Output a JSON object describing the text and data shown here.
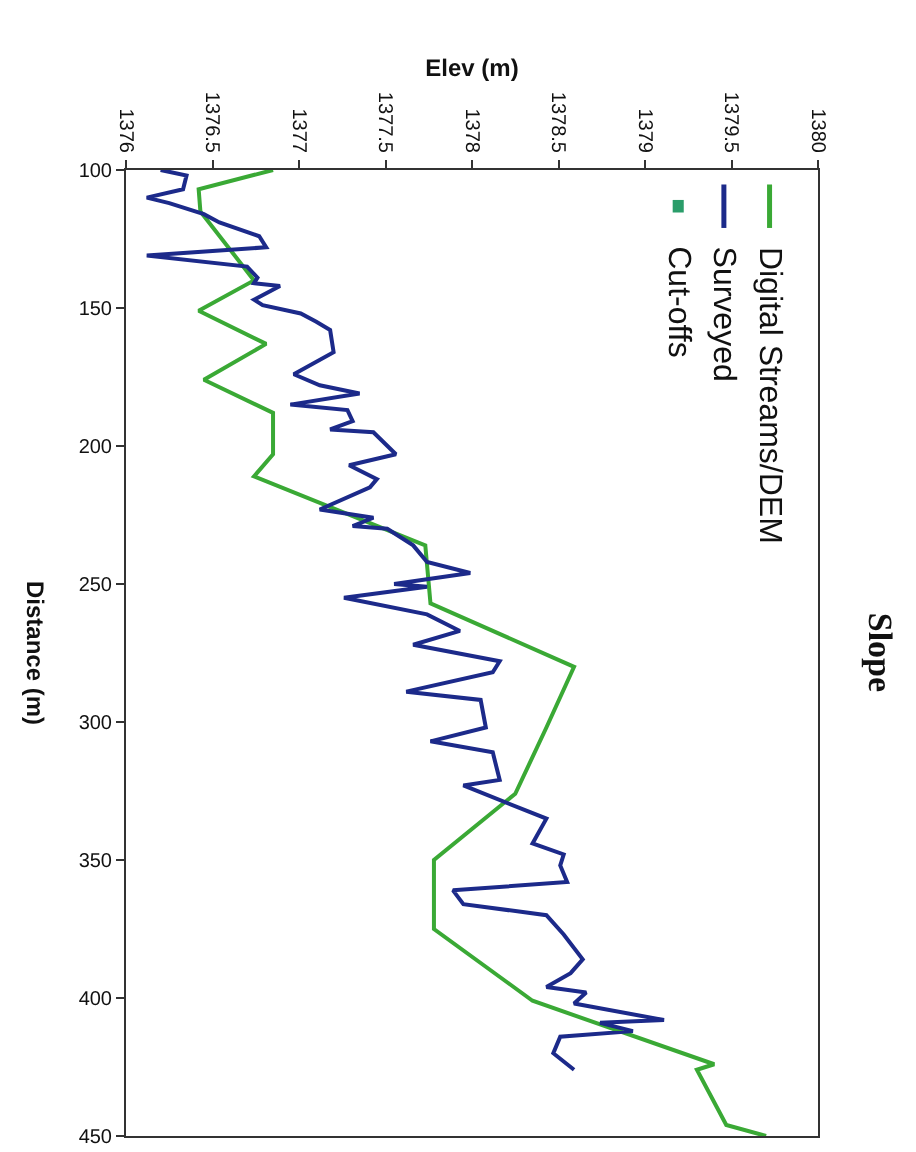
{
  "chart_data": {
    "type": "line",
    "title": "Slope",
    "xlabel": "Elev (m)",
    "ylabel": "Distance (m)",
    "xlim": [
      1376,
      1380
    ],
    "xticks": [
      1376,
      1376.5,
      1377,
      1377.5,
      1378,
      1378.5,
      1379,
      1379.5,
      1380
    ],
    "ylim": [
      450,
      100
    ],
    "yticks": [
      100,
      150,
      200,
      250,
      300,
      350,
      400,
      450
    ],
    "grid": false,
    "legend": "top right",
    "line_style": "solid",
    "series": [
      {
        "name": "Digital Streams/DEM",
        "color": "#3aa935",
        "values": [
          100,
          107,
          115,
          140,
          151,
          163,
          176,
          188,
          203,
          211,
          236,
          257,
          280,
          302,
          326,
          350,
          375,
          401,
          424,
          426,
          446,
          450
        ],
        "x": [
          1376.85,
          1376.42,
          1376.43,
          1376.74,
          1376.42,
          1376.81,
          1376.45,
          1376.85,
          1376.85,
          1376.74,
          1377.73,
          1377.76,
          1378.59,
          1378.43,
          1378.25,
          1377.78,
          1377.78,
          1378.35,
          1379.4,
          1379.3,
          1379.47,
          1379.7
        ]
      },
      {
        "name": "Surveyed",
        "color": "#1c2a8a",
        "values": [
          100,
          102,
          107,
          110,
          112,
          116,
          119,
          124,
          128,
          131,
          135,
          139,
          141,
          142,
          147,
          149,
          152,
          155,
          158,
          166,
          174,
          178,
          181,
          185,
          187,
          191,
          194,
          195,
          203,
          207,
          212,
          215,
          223,
          226,
          229,
          230,
          236,
          242,
          246,
          250,
          251,
          255,
          261,
          267,
          272,
          278,
          282,
          289,
          292,
          302,
          307,
          311,
          321,
          323,
          335,
          344,
          348,
          352,
          358,
          361,
          366,
          370,
          377,
          386,
          391,
          396,
          398,
          402,
          408,
          409,
          412,
          414,
          420,
          426
        ],
        "x": [
          1376.2,
          1376.35,
          1376.33,
          1376.12,
          1376.25,
          1376.45,
          1376.54,
          1376.77,
          1376.81,
          1376.12,
          1376.7,
          1376.76,
          1376.74,
          1376.89,
          1376.74,
          1376.79,
          1377.01,
          1377.1,
          1377.18,
          1377.2,
          1376.97,
          1377.12,
          1377.35,
          1376.95,
          1377.28,
          1377.31,
          1377.18,
          1377.43,
          1377.56,
          1377.29,
          1377.45,
          1377.41,
          1377.12,
          1377.43,
          1377.31,
          1377.51,
          1377.66,
          1377.74,
          1377.99,
          1377.55,
          1377.74,
          1377.26,
          1377.74,
          1377.93,
          1377.66,
          1378.16,
          1378.12,
          1377.62,
          1378.05,
          1378.08,
          1377.76,
          1378.12,
          1378.16,
          1377.95,
          1378.43,
          1378.35,
          1378.53,
          1378.51,
          1378.55,
          1377.89,
          1377.95,
          1378.43,
          1378.53,
          1378.64,
          1378.57,
          1378.43,
          1378.66,
          1378.59,
          1379.11,
          1378.74,
          1378.93,
          1378.51,
          1378.47,
          1378.59
        ]
      },
      {
        "name": "Cut-offs",
        "color": "#2a9d6a",
        "type": "scatter",
        "marker": "square"
      }
    ]
  }
}
